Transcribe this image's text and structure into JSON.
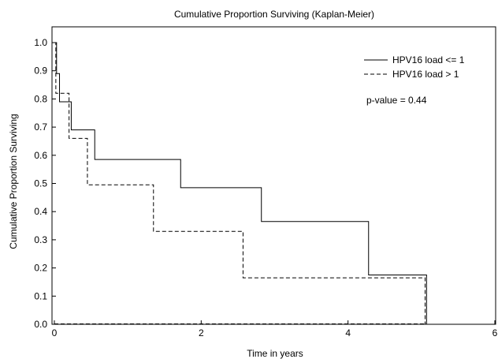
{
  "chart_data": {
    "type": "line",
    "title": "Cumulative Proportion Surviving (Kaplan-Meier)",
    "xlabel": "Time in years",
    "ylabel": "Cumulative Proportion Surviving",
    "xlim": [
      0,
      6
    ],
    "ylim": [
      0,
      1.05
    ],
    "x_ticks": [
      0,
      2,
      4,
      6
    ],
    "y_ticks": [
      0.0,
      0.1,
      0.2,
      0.3,
      0.4,
      0.5,
      0.6,
      0.7,
      0.8,
      0.9,
      1.0
    ],
    "grid": false,
    "legend_position": "top-right",
    "annotation": "p-value = 0.44",
    "series": [
      {
        "name": "HPV16 load <= 1",
        "style": "solid",
        "x": [
          0,
          0.03,
          0.07,
          0.23,
          0.55,
          1.72,
          2.82,
          4.28,
          5.07
        ],
        "y": [
          1.0,
          0.89,
          0.79,
          0.69,
          0.585,
          0.485,
          0.365,
          0.175,
          0.0
        ]
      },
      {
        "name": "HPV16 load > 1",
        "style": "dashed",
        "x": [
          0,
          0.02,
          0.2,
          0.45,
          1.35,
          2.57,
          5.05
        ],
        "y": [
          1.0,
          0.82,
          0.66,
          0.495,
          0.33,
          0.165,
          0.0
        ]
      }
    ]
  }
}
